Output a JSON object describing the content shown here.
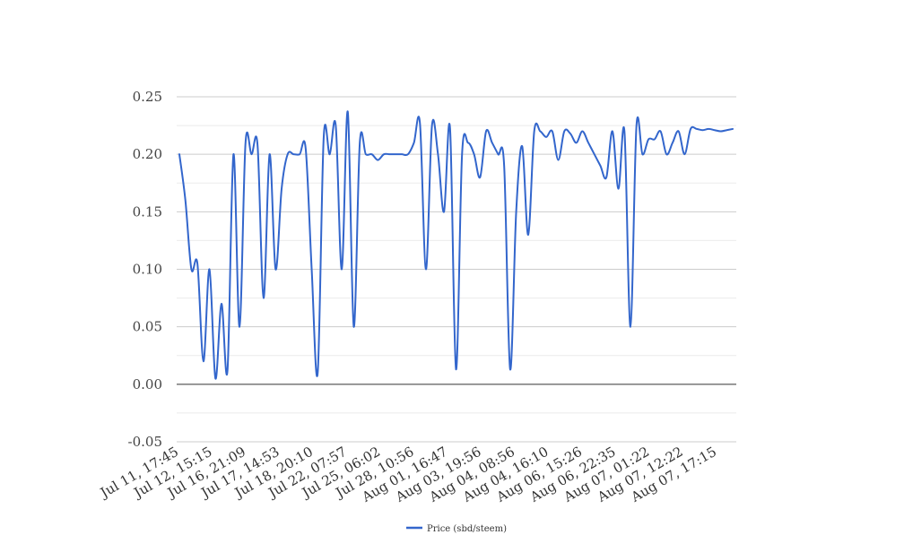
{
  "chart_data": {
    "type": "line",
    "x_tick_labels": [
      "Jul 11, 17:45",
      "Jul 12, 15:15",
      "Jul 16, 21:09",
      "Jul 17, 14:53",
      "Jul 18, 20:10",
      "Jul 22, 07:57",
      "Jul 25, 06:02",
      "Jul 28, 10:56",
      "Aug 01, 16:47",
      "Aug 03, 19:56",
      "Aug 04, 08:56",
      "Aug 04, 16:10",
      "Aug 06, 15:26",
      "Aug 06, 22:35",
      "Aug 07, 01:22",
      "Aug 07, 12:22",
      "Aug 07, 17:15"
    ],
    "y_tick_labels": [
      "-0.05",
      "0.00",
      "0.05",
      "0.10",
      "0.15",
      "0.20",
      "0.25"
    ],
    "ylim": [
      -0.05,
      0.25
    ],
    "grid": true,
    "legend_position": "bottom",
    "series": [
      {
        "name": "Price (sbd/steem)",
        "color": "#3366cc",
        "values": [
          0.2,
          0.16,
          0.1,
          0.105,
          0.02,
          0.1,
          0.005,
          0.07,
          0.012,
          0.2,
          0.05,
          0.21,
          0.2,
          0.208,
          0.075,
          0.2,
          0.1,
          0.17,
          0.2,
          0.2,
          0.2,
          0.205,
          0.1,
          0.01,
          0.215,
          0.2,
          0.225,
          0.1,
          0.237,
          0.05,
          0.21,
          0.2,
          0.2,
          0.195,
          0.2,
          0.2,
          0.2,
          0.2,
          0.2,
          0.21,
          0.227,
          0.1,
          0.225,
          0.2,
          0.15,
          0.223,
          0.013,
          0.2,
          0.21,
          0.2,
          0.18,
          0.22,
          0.21,
          0.2,
          0.19,
          0.013,
          0.15,
          0.207,
          0.13,
          0.22,
          0.22,
          0.215,
          0.22,
          0.195,
          0.22,
          0.218,
          0.21,
          0.22,
          0.21,
          0.2,
          0.19,
          0.18,
          0.22,
          0.17,
          0.22,
          0.05,
          0.225,
          0.2,
          0.213,
          0.213,
          0.22,
          0.2,
          0.21,
          0.22,
          0.2,
          0.222,
          0.222,
          0.221,
          0.222,
          0.221,
          0.22,
          0.221,
          0.222
        ]
      }
    ]
  }
}
